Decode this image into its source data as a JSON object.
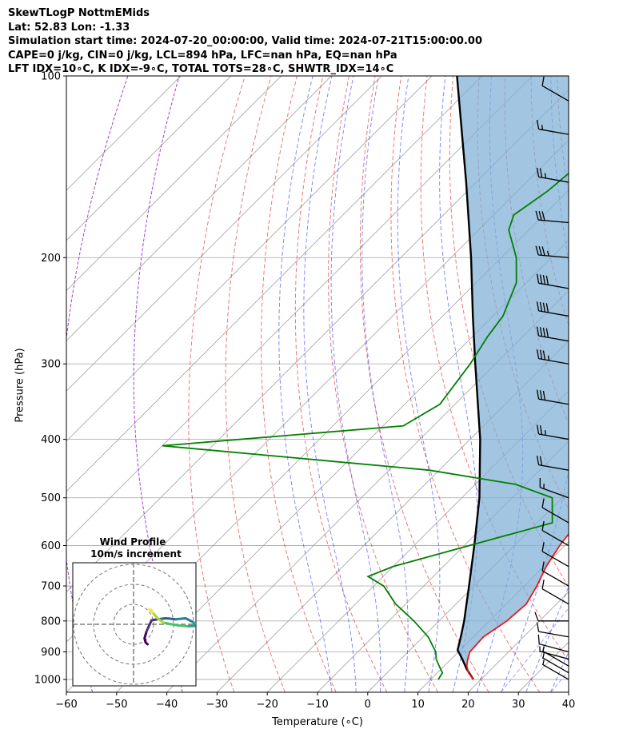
{
  "title_lines": [
    "SkewTLogP NottmEMids",
    "Lat: 52.83   Lon: -1.33",
    "Simulation start time: 2024-07-20_00:00:00, Valid time: 2024-07-21T15:00:00.00",
    "CAPE=0 j/kg, CIN=0 j/kg, LCL=894 hPa, LFC=nan hPa, EQ=nan hPa",
    "LFT IDX=10∘C, K IDX=-9∘C, TOTAL TOTS=28∘C, SHWTR_IDX=14∘C"
  ],
  "chart_data": {
    "type": "skewT-logP",
    "xlabel": "Temperature (∘C)",
    "ylabel": "Pressure (hPa)",
    "xlim": [
      -60,
      40
    ],
    "ylim": [
      1050,
      100
    ],
    "x_ticks": [
      "−60",
      "−50",
      "−40",
      "−30",
      "−20",
      "−10",
      "0",
      "10",
      "20",
      "30",
      "40"
    ],
    "y_ticks": [
      "100",
      "200",
      "300",
      "400",
      "500",
      "600",
      "700",
      "800",
      "900",
      "1000"
    ],
    "y_scale": "log",
    "grid": true,
    "colors": {
      "temperature": "#e41a1c",
      "dewpoint": "#008000",
      "parcel": "#000000",
      "cape_fill": "#7eb0d5",
      "dry_adiabat": "#e41a1c",
      "moist_adiabat": "#3b4fff",
      "mixing_ratio": "#7a7aff"
    },
    "temperature": [
      {
        "p": 1000,
        "t": 18.5
      },
      {
        "p": 975,
        "t": 16.2
      },
      {
        "p": 950,
        "t": 14.5
      },
      {
        "p": 925,
        "t": 13.3
      },
      {
        "p": 900,
        "t": 12.3
      },
      {
        "p": 850,
        "t": 12.0
      },
      {
        "p": 800,
        "t": 13.5
      },
      {
        "p": 750,
        "t": 14.0
      },
      {
        "p": 700,
        "t": 12.5
      },
      {
        "p": 650,
        "t": 10.5
      },
      {
        "p": 600,
        "t": 9.0
      },
      {
        "p": 550,
        "t": 8.0
      },
      {
        "p": 500,
        "t": 5.0
      },
      {
        "p": 450,
        "t": 1.0
      },
      {
        "p": 400,
        "t": -3.5
      },
      {
        "p": 350,
        "t": -9.5
      },
      {
        "p": 300,
        "t": -16.5
      },
      {
        "p": 270,
        "t": -21.0
      },
      {
        "p": 250,
        "t": -22.0
      },
      {
        "p": 220,
        "t": -25.0
      },
      {
        "p": 200,
        "t": -28.0
      },
      {
        "p": 160,
        "t": -35.0
      },
      {
        "p": 140,
        "t": -38.0
      },
      {
        "p": 120,
        "t": -42.0
      },
      {
        "p": 105,
        "t": -46.5
      },
      {
        "p": 100,
        "t": -48.0
      }
    ],
    "dewpoint": [
      {
        "p": 1000,
        "t": 11.5
      },
      {
        "p": 975,
        "t": 11.0
      },
      {
        "p": 950,
        "t": 9.0
      },
      {
        "p": 925,
        "t": 7.0
      },
      {
        "p": 900,
        "t": 5.5
      },
      {
        "p": 850,
        "t": 1.0
      },
      {
        "p": 800,
        "t": -5.0
      },
      {
        "p": 750,
        "t": -12.0
      },
      {
        "p": 700,
        "t": -18.0
      },
      {
        "p": 675,
        "t": -23.0
      },
      {
        "p": 650,
        "t": -20.0
      },
      {
        "p": 600,
        "t": -9.0
      },
      {
        "p": 550,
        "t": 3.0
      },
      {
        "p": 500,
        "t": -2.0
      },
      {
        "p": 475,
        "t": -12.0
      },
      {
        "p": 450,
        "t": -32.0
      },
      {
        "p": 410,
        "t": -90.0
      },
      {
        "p": 380,
        "t": -46.0
      },
      {
        "p": 350,
        "t": -43.0
      },
      {
        "p": 300,
        "t": -45.0
      },
      {
        "p": 270,
        "t": -47.0
      },
      {
        "p": 250,
        "t": -48.0
      },
      {
        "p": 220,
        "t": -52.0
      },
      {
        "p": 200,
        "t": -57.0
      },
      {
        "p": 180,
        "t": -64.0
      },
      {
        "p": 170,
        "t": -66.0
      },
      {
        "p": 155,
        "t": -64.0
      },
      {
        "p": 140,
        "t": -63.0
      },
      {
        "p": 130,
        "t": -63.0
      },
      {
        "p": 120,
        "t": -61.0
      },
      {
        "p": 100,
        "t": -53.0
      }
    ],
    "parcel": [
      {
        "p": 1000,
        "t": 18.5
      },
      {
        "p": 960,
        "t": 15.0
      },
      {
        "p": 925,
        "t": 12.2
      },
      {
        "p": 894,
        "t": 9.5
      },
      {
        "p": 850,
        "t": 7.5
      },
      {
        "p": 800,
        "t": 5.0
      },
      {
        "p": 700,
        "t": -1.0
      },
      {
        "p": 600,
        "t": -8.0
      },
      {
        "p": 500,
        "t": -16.5
      },
      {
        "p": 400,
        "t": -28.0
      },
      {
        "p": 300,
        "t": -44.0
      },
      {
        "p": 250,
        "t": -54.0
      },
      {
        "p": 200,
        "t": -66.0
      },
      {
        "p": 150,
        "t": -82.0
      },
      {
        "p": 100,
        "t": -105.0
      }
    ],
    "wind_barbs": [
      {
        "p": 1000,
        "speed_kt": 5,
        "dir_deg": 300
      },
      {
        "p": 975,
        "speed_kt": 5,
        "dir_deg": 300
      },
      {
        "p": 950,
        "speed_kt": 5,
        "dir_deg": 300
      },
      {
        "p": 925,
        "speed_kt": 5,
        "dir_deg": 285
      },
      {
        "p": 900,
        "speed_kt": 10,
        "dir_deg": 285
      },
      {
        "p": 850,
        "speed_kt": 10,
        "dir_deg": 280
      },
      {
        "p": 800,
        "speed_kt": 10,
        "dir_deg": 270
      },
      {
        "p": 750,
        "speed_kt": 10,
        "dir_deg": 300
      },
      {
        "p": 700,
        "speed_kt": 10,
        "dir_deg": 300
      },
      {
        "p": 650,
        "speed_kt": 10,
        "dir_deg": 300
      },
      {
        "p": 600,
        "speed_kt": 10,
        "dir_deg": 300
      },
      {
        "p": 550,
        "speed_kt": 10,
        "dir_deg": 300
      },
      {
        "p": 500,
        "speed_kt": 15,
        "dir_deg": 290
      },
      {
        "p": 450,
        "speed_kt": 20,
        "dir_deg": 280
      },
      {
        "p": 400,
        "speed_kt": 25,
        "dir_deg": 280
      },
      {
        "p": 350,
        "speed_kt": 30,
        "dir_deg": 280
      },
      {
        "p": 300,
        "speed_kt": 35,
        "dir_deg": 280
      },
      {
        "p": 275,
        "speed_kt": 40,
        "dir_deg": 280
      },
      {
        "p": 250,
        "speed_kt": 40,
        "dir_deg": 280
      },
      {
        "p": 225,
        "speed_kt": 40,
        "dir_deg": 280
      },
      {
        "p": 200,
        "speed_kt": 35,
        "dir_deg": 275
      },
      {
        "p": 175,
        "speed_kt": 30,
        "dir_deg": 275
      },
      {
        "p": 150,
        "speed_kt": 25,
        "dir_deg": 280
      },
      {
        "p": 125,
        "speed_kt": 15,
        "dir_deg": 280
      },
      {
        "p": 110,
        "speed_kt": 10,
        "dir_deg": 300
      }
    ],
    "hodograph": {
      "title": "Wind Profile",
      "subtitle": "10m/s increment",
      "ring_increment_ms": 10,
      "rings": 3,
      "points_uv_ms": [
        [
          7.0,
          -10.0
        ],
        [
          6.0,
          -9.0
        ],
        [
          5.5,
          -7.0
        ],
        [
          6.5,
          -3.5
        ],
        [
          9.0,
          2.0
        ],
        [
          12.0,
          2.5
        ],
        [
          16.0,
          3.0
        ],
        [
          18.5,
          2.8
        ],
        [
          21.0,
          2.5
        ],
        [
          26.0,
          3.0
        ],
        [
          30.0,
          1.0
        ],
        [
          30.5,
          -0.8
        ],
        [
          27.0,
          -1.0
        ],
        [
          22.0,
          -0.5
        ],
        [
          18.0,
          0.2
        ],
        [
          15.0,
          0.8
        ],
        [
          12.0,
          3.0
        ],
        [
          9.5,
          6.0
        ],
        [
          8.0,
          7.5
        ],
        [
          9.0,
          7.0
        ]
      ]
    }
  }
}
